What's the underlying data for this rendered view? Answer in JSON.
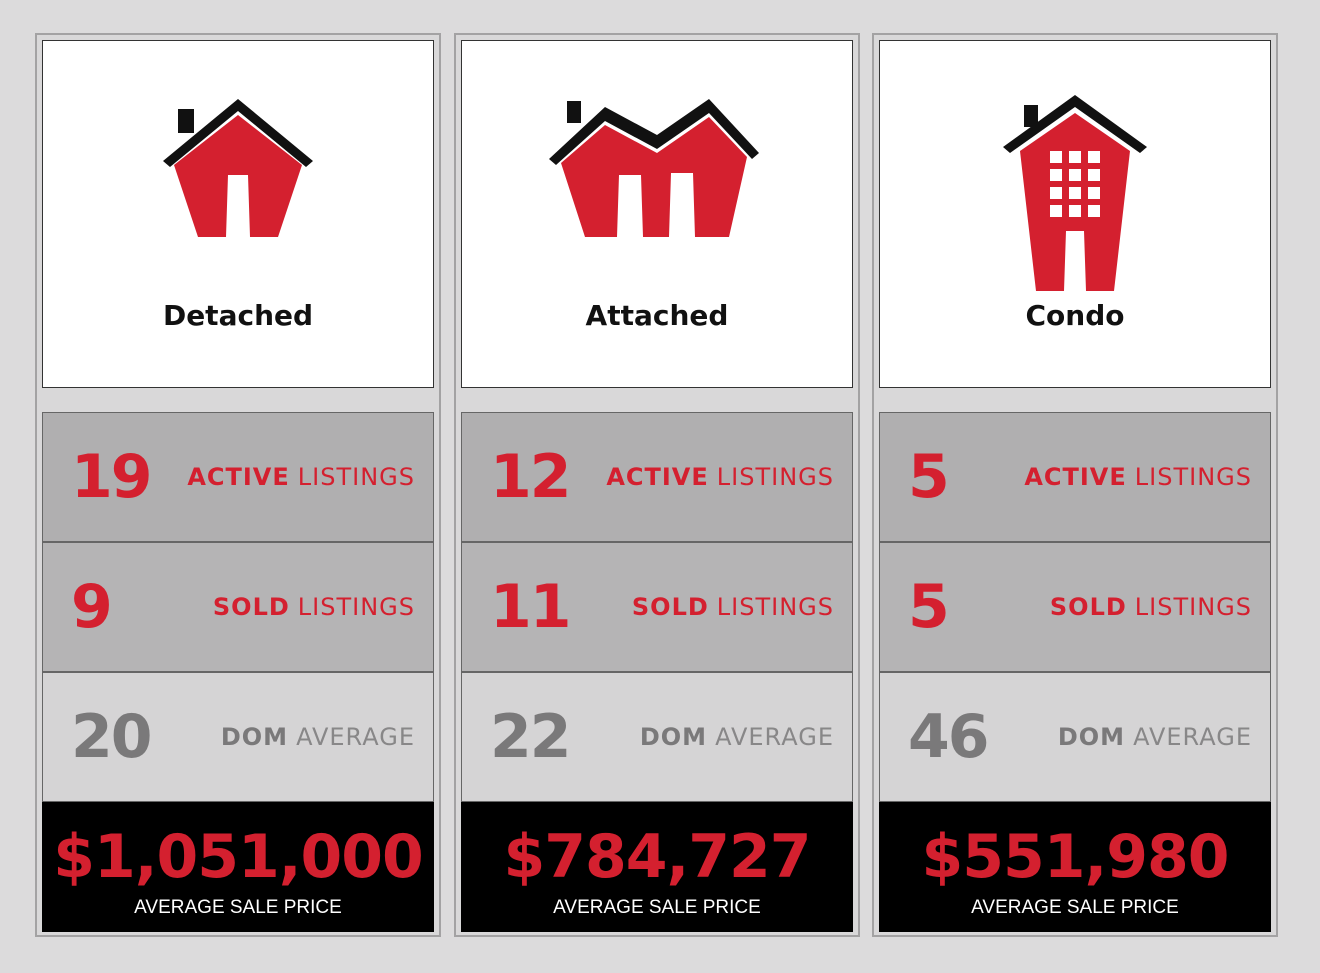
{
  "colors": {
    "accent": "#d4202f",
    "price_bg": "#000000",
    "card_bg": "#d9d8d9"
  },
  "cards": [
    {
      "title": "Detached",
      "icon": "detached-house-icon",
      "active": {
        "value": "19",
        "bold": "ACTIVE",
        "rest": "LISTINGS"
      },
      "sold": {
        "value": "9",
        "bold": "SOLD",
        "rest": "LISTINGS"
      },
      "dom": {
        "value": "20",
        "bold": "DOM",
        "rest": "AVERAGE"
      },
      "price": {
        "value": "$1,051,000",
        "label": "AVERAGE SALE PRICE"
      }
    },
    {
      "title": "Attached",
      "icon": "attached-house-icon",
      "active": {
        "value": "12",
        "bold": "ACTIVE",
        "rest": "LISTINGS"
      },
      "sold": {
        "value": "11",
        "bold": "SOLD",
        "rest": "LISTINGS"
      },
      "dom": {
        "value": "22",
        "bold": "DOM",
        "rest": "AVERAGE"
      },
      "price": {
        "value": "$784,727",
        "label": "AVERAGE SALE PRICE"
      }
    },
    {
      "title": "Condo",
      "icon": "condo-building-icon",
      "active": {
        "value": "5",
        "bold": "ACTIVE",
        "rest": "LISTINGS"
      },
      "sold": {
        "value": "5",
        "bold": "SOLD",
        "rest": "LISTINGS"
      },
      "dom": {
        "value": "46",
        "bold": "DOM",
        "rest": "AVERAGE"
      },
      "price": {
        "value": "$551,980",
        "label": "AVERAGE SALE PRICE"
      }
    }
  ]
}
